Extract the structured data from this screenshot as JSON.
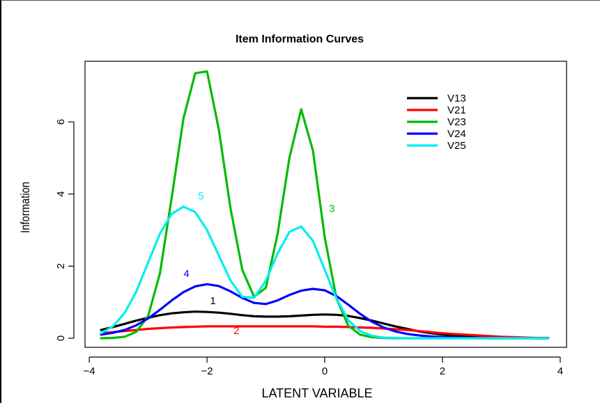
{
  "chart_data": {
    "type": "line",
    "title": "Item Information Curves",
    "xlabel": "LATENT VARIABLE",
    "ylabel": "Information",
    "xlim": [
      -3.8,
      3.8
    ],
    "ylim": [
      0,
      7.45
    ],
    "xticks": [
      -4,
      -2,
      0,
      2,
      4
    ],
    "yticks": [
      0,
      2,
      4,
      6
    ],
    "grid": false,
    "legend": {
      "position": "top-right"
    },
    "x": [
      -3.8,
      -3.6,
      -3.4,
      -3.2,
      -3.0,
      -2.8,
      -2.6,
      -2.4,
      -2.2,
      -2.0,
      -1.8,
      -1.6,
      -1.4,
      -1.2,
      -1.0,
      -0.8,
      -0.6,
      -0.4,
      -0.2,
      0.0,
      0.2,
      0.4,
      0.6,
      0.8,
      1.0,
      1.2,
      1.4,
      1.6,
      1.8,
      2.0,
      2.2,
      2.4,
      2.6,
      2.8,
      3.0,
      3.2,
      3.4,
      3.6,
      3.8
    ],
    "series": [
      {
        "name": "V13",
        "label": "1",
        "label_at": [
          -1.9,
          0.95
        ],
        "color": "#000000",
        "values": [
          0.23,
          0.31,
          0.4,
          0.49,
          0.57,
          0.64,
          0.69,
          0.72,
          0.74,
          0.73,
          0.71,
          0.68,
          0.64,
          0.61,
          0.6,
          0.6,
          0.61,
          0.63,
          0.65,
          0.66,
          0.65,
          0.62,
          0.56,
          0.49,
          0.41,
          0.33,
          0.26,
          0.19,
          0.14,
          0.1,
          0.07,
          0.05,
          0.04,
          0.03,
          0.02,
          0.01,
          0.01,
          0.0,
          0.0
        ]
      },
      {
        "name": "V21",
        "label": "2",
        "label_at": [
          -1.5,
          0.12
        ],
        "color": "#ff0000",
        "values": [
          0.14,
          0.17,
          0.2,
          0.23,
          0.26,
          0.28,
          0.3,
          0.31,
          0.32,
          0.33,
          0.33,
          0.33,
          0.33,
          0.33,
          0.33,
          0.33,
          0.33,
          0.33,
          0.33,
          0.32,
          0.32,
          0.31,
          0.3,
          0.29,
          0.27,
          0.25,
          0.23,
          0.2,
          0.17,
          0.14,
          0.12,
          0.1,
          0.08,
          0.06,
          0.04,
          0.03,
          0.02,
          0.01,
          0.01
        ]
      },
      {
        "name": "V23",
        "label": "3",
        "label_at": [
          0.12,
          3.5
        ],
        "color": "#00bb00",
        "values": [
          0.0,
          0.01,
          0.04,
          0.18,
          0.62,
          1.8,
          3.9,
          6.1,
          7.35,
          7.4,
          5.8,
          3.6,
          1.9,
          1.15,
          1.4,
          2.9,
          5.0,
          6.35,
          5.2,
          2.8,
          1.1,
          0.35,
          0.1,
          0.03,
          0.01,
          0.0,
          0.0,
          0.0,
          0.0,
          0.0,
          0.0,
          0.0,
          0.0,
          0.0,
          0.0,
          0.0,
          0.0,
          0.0,
          0.0
        ]
      },
      {
        "name": "V24",
        "label": "4",
        "label_at": [
          -2.35,
          1.7
        ],
        "color": "#0000ff",
        "values": [
          0.1,
          0.15,
          0.23,
          0.36,
          0.55,
          0.79,
          1.05,
          1.28,
          1.44,
          1.5,
          1.45,
          1.3,
          1.12,
          0.98,
          0.95,
          1.05,
          1.2,
          1.32,
          1.37,
          1.33,
          1.17,
          0.93,
          0.68,
          0.46,
          0.3,
          0.19,
          0.12,
          0.08,
          0.05,
          0.03,
          0.02,
          0.01,
          0.01,
          0.0,
          0.0,
          0.0,
          0.0,
          0.0,
          0.0
        ]
      },
      {
        "name": "V25",
        "label": "5",
        "label_at": [
          -2.1,
          3.85
        ],
        "color": "#00eeee",
        "values": [
          0.14,
          0.33,
          0.7,
          1.3,
          2.1,
          2.9,
          3.45,
          3.65,
          3.5,
          3.0,
          2.3,
          1.6,
          1.15,
          1.12,
          1.6,
          2.35,
          2.95,
          3.1,
          2.7,
          1.9,
          1.1,
          0.5,
          0.2,
          0.07,
          0.02,
          0.01,
          0.0,
          0.0,
          0.0,
          0.0,
          0.0,
          0.0,
          0.0,
          0.0,
          0.0,
          0.0,
          0.0,
          0.0,
          0.0
        ]
      }
    ]
  }
}
